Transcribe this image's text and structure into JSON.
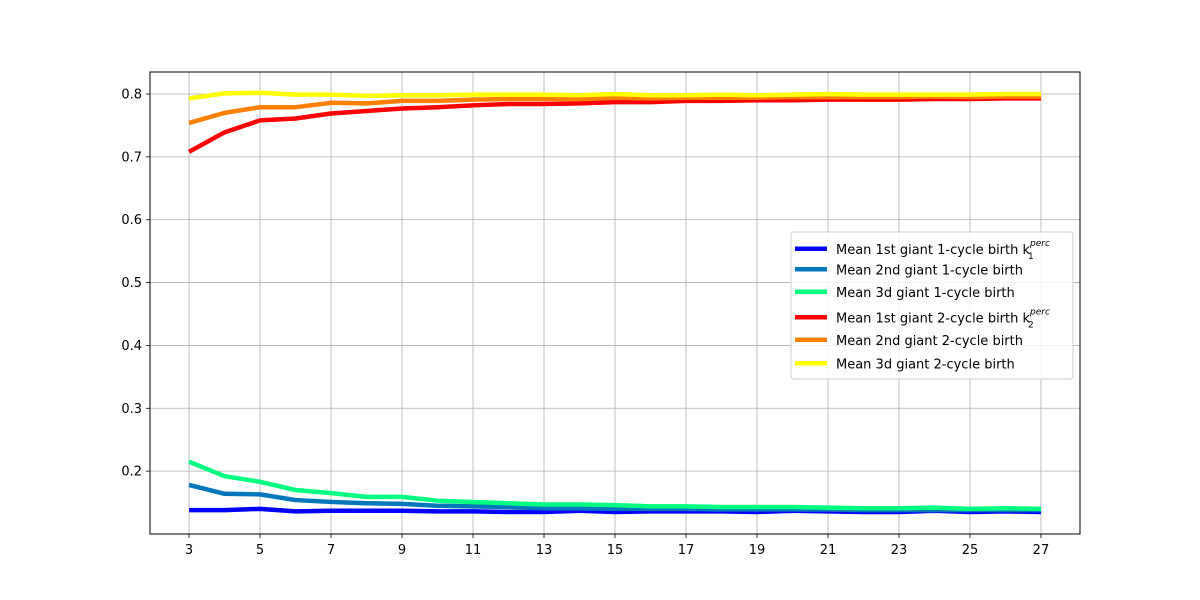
{
  "chart_data": {
    "type": "line",
    "title": "",
    "xlabel": "",
    "ylabel": "",
    "xlim": [
      1.9,
      28.1
    ],
    "ylim": [
      0.1,
      0.835
    ],
    "x": [
      3,
      4,
      5,
      6,
      7,
      8,
      9,
      10,
      11,
      12,
      13,
      14,
      15,
      16,
      17,
      18,
      19,
      20,
      21,
      22,
      23,
      24,
      25,
      26,
      27
    ],
    "xticks": [
      "3",
      "5",
      "7",
      "9",
      "11",
      "13",
      "15",
      "17",
      "19",
      "21",
      "23",
      "25",
      "27"
    ],
    "yticks": [
      "0.2",
      "0.3",
      "0.4",
      "0.5",
      "0.6",
      "0.7",
      "0.8"
    ],
    "grid": true,
    "legend_position": "center-right",
    "series": [
      {
        "name": "Mean 1st giant 1-cycle birth k",
        "name_sub": "1",
        "name_sup": "perc",
        "color": "#0000ff",
        "values": [
          0.138,
          0.138,
          0.14,
          0.136,
          0.137,
          0.137,
          0.137,
          0.136,
          0.136,
          0.135,
          0.135,
          0.137,
          0.135,
          0.136,
          0.136,
          0.136,
          0.135,
          0.137,
          0.136,
          0.135,
          0.135,
          0.137,
          0.135,
          0.136,
          0.135
        ]
      },
      {
        "name": "Mean 2nd giant 1-cycle birth",
        "color": "#0077bb",
        "values": [
          0.178,
          0.164,
          0.163,
          0.154,
          0.151,
          0.149,
          0.148,
          0.145,
          0.144,
          0.143,
          0.141,
          0.141,
          0.14,
          0.14,
          0.14,
          0.139,
          0.139,
          0.139,
          0.139,
          0.138,
          0.138,
          0.138,
          0.138,
          0.138,
          0.138
        ]
      },
      {
        "name": "Mean 3d giant 1-cycle birth",
        "color": "#00ff80",
        "values": [
          0.215,
          0.192,
          0.183,
          0.17,
          0.165,
          0.159,
          0.159,
          0.153,
          0.151,
          0.149,
          0.147,
          0.147,
          0.146,
          0.144,
          0.144,
          0.143,
          0.143,
          0.143,
          0.142,
          0.141,
          0.141,
          0.142,
          0.14,
          0.141,
          0.14
        ]
      },
      {
        "name": "Mean 1st giant 2-cycle birth k",
        "name_sub": "2",
        "name_sup": "perc",
        "color": "#ff0000",
        "values": [
          0.708,
          0.739,
          0.758,
          0.761,
          0.769,
          0.773,
          0.777,
          0.779,
          0.782,
          0.784,
          0.784,
          0.785,
          0.787,
          0.787,
          0.789,
          0.789,
          0.79,
          0.79,
          0.791,
          0.791,
          0.791,
          0.792,
          0.792,
          0.793,
          0.793
        ]
      },
      {
        "name": "Mean 2nd giant 2-cycle birth",
        "color": "#ff8000",
        "values": [
          0.754,
          0.77,
          0.779,
          0.779,
          0.786,
          0.785,
          0.789,
          0.789,
          0.791,
          0.792,
          0.792,
          0.792,
          0.794,
          0.793,
          0.794,
          0.794,
          0.794,
          0.795,
          0.795,
          0.795,
          0.795,
          0.796,
          0.795,
          0.796,
          0.796
        ]
      },
      {
        "name": "Mean 3d giant 2-cycle birth",
        "color": "#ffff00",
        "values": [
          0.793,
          0.801,
          0.802,
          0.799,
          0.799,
          0.797,
          0.798,
          0.798,
          0.799,
          0.799,
          0.799,
          0.798,
          0.8,
          0.798,
          0.798,
          0.799,
          0.798,
          0.799,
          0.8,
          0.799,
          0.799,
          0.799,
          0.799,
          0.8,
          0.8
        ]
      }
    ]
  }
}
